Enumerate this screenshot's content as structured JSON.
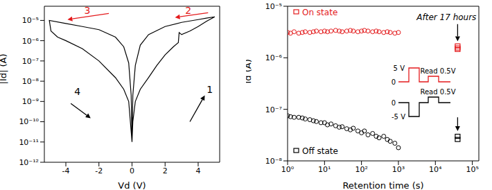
{
  "chart_data": [
    {
      "type": "line",
      "x_label": "Vd (V)",
      "y_label": "|Id| (A)",
      "log": "y",
      "xlim": [
        -5.3,
        5.3
      ],
      "xticks": [
        -4,
        -2,
        0,
        2,
        4
      ],
      "ylim": [
        1e-12,
        5e-05
      ],
      "yticks": [
        {
          "value": 1e-12,
          "label": "10⁻¹²"
        },
        {
          "value": 1e-11,
          "label": "10⁻¹¹"
        },
        {
          "value": 1e-10,
          "label": "10⁻¹⁰"
        },
        {
          "value": 1e-09,
          "label": "10⁻⁹"
        },
        {
          "value": 1e-08,
          "label": "10⁻⁸"
        },
        {
          "value": 1e-07,
          "label": "10⁻⁷"
        },
        {
          "value": 1e-06,
          "label": "10⁻⁶"
        },
        {
          "value": 1e-05,
          "label": "10⁻⁵"
        }
      ],
      "series": [
        {
          "color": "#000000",
          "line_style": "solid",
          "x": [
            0,
            0.05,
            0.2,
            0.5,
            1,
            1.5,
            2,
            2.5,
            2.8,
            2.85,
            3,
            3.5,
            4,
            4.5,
            5,
            4.5,
            4,
            3,
            2,
            1,
            0.5,
            0.2,
            0.05,
            0,
            -0.05,
            -0.2,
            -0.5,
            -1,
            -2,
            -3,
            -4,
            -5,
            -4.9,
            -4.5,
            -4,
            -3,
            -2,
            -1,
            -0.5,
            -0.2,
            0
          ],
          "values": [
            1e-11,
            1e-10,
            1e-09,
            4e-09,
            1.5e-08,
            6e-08,
            2e-07,
            5e-07,
            8e-07,
            2.5e-06,
            2e-06,
            3e-06,
            5e-06,
            9e-06,
            1.5e-05,
            1.3e-05,
            1.1e-05,
            8e-06,
            5e-06,
            2e-06,
            6e-07,
            6e-08,
            2e-09,
            1e-11,
            2e-09,
            8e-08,
            5e-07,
            1.5e-06,
            3.5e-06,
            5e-06,
            7e-06,
            1e-05,
            3e-06,
            1.5e-06,
            1e-06,
            4e-07,
            1e-07,
            1.5e-08,
            4e-09,
            1e-09,
            1e-11
          ]
        }
      ],
      "annotations": [
        {
          "text": "1",
          "color": "#000000",
          "x": 4.7,
          "y": 4e-09,
          "arrow_from": [
            3.5,
            1e-10
          ],
          "arrow_to": [
            4.4,
            2e-09
          ]
        },
        {
          "text": "2",
          "color": "#e41a1c",
          "x": 3.4,
          "y": 3.2e-05,
          "arrow_from": [
            4.6,
            2.4e-05
          ],
          "arrow_to": [
            2.6,
            1.4e-05
          ]
        },
        {
          "text": "3",
          "color": "#e41a1c",
          "x": -2.7,
          "y": 3.2e-05,
          "arrow_from": [
            -1.4,
            2.2e-05
          ],
          "arrow_to": [
            -3.9,
            1.1e-05
          ]
        },
        {
          "text": "4",
          "color": "#000000",
          "x": -3.3,
          "y": 3e-09,
          "arrow_from": [
            -3.7,
            8e-10
          ],
          "arrow_to": [
            -2.5,
            1.5e-10
          ]
        }
      ]
    },
    {
      "type": "scatter",
      "x_label": "Retention time (s)",
      "y_label": "Id (A)",
      "log": true,
      "legend": "left",
      "xlim": [
        1,
        150000
      ],
      "xticks": [
        {
          "value": 1,
          "label": "10⁰"
        },
        {
          "value": 10,
          "label": "10¹"
        },
        {
          "value": 100,
          "label": "10²"
        },
        {
          "value": 1000,
          "label": "10³"
        },
        {
          "value": 10000,
          "label": "10⁴"
        },
        {
          "value": 100000,
          "label": "10⁵"
        }
      ],
      "ylim": [
        1e-08,
        1e-05
      ],
      "yticks": [
        {
          "value": 1e-08,
          "label": "10⁻⁸"
        },
        {
          "value": 1e-07,
          "label": "10⁻⁷"
        },
        {
          "value": 1e-06,
          "label": "10⁻⁶"
        },
        {
          "value": 1e-05,
          "label": "10⁻⁵"
        }
      ],
      "series": [
        {
          "name": "On state",
          "color": "#e41a1c",
          "marker": "circle",
          "x": [
            1,
            1.2,
            1.5,
            2,
            2.5,
            3,
            4,
            5,
            6,
            8,
            10,
            12,
            15,
            20,
            25,
            30,
            40,
            50,
            60,
            80,
            100,
            120,
            150,
            200,
            250,
            300,
            400,
            500,
            600,
            800,
            1000
          ],
          "values": [
            3.1e-06,
            3e-06,
            3.2e-06,
            3e-06,
            3.1e-06,
            3.2e-06,
            3.1e-06,
            3.2e-06,
            3.3e-06,
            3.2e-06,
            3.3e-06,
            3.2e-06,
            3.3e-06,
            3.4e-06,
            3.3e-06,
            3.2e-06,
            3.3e-06,
            3.4e-06,
            3.3e-06,
            3.2e-06,
            3.3e-06,
            3.4e-06,
            3.3e-06,
            3.2e-06,
            3.3e-06,
            3.2e-06,
            3.1e-06,
            3.2e-06,
            3.1e-06,
            3e-06,
            3.1e-06
          ]
        },
        {
          "color": "#e41a1c",
          "marker": "square",
          "x": [
            40000,
            40000,
            40000
          ],
          "values": [
            1.7e-06,
            1.55e-06,
            1.45e-06
          ]
        },
        {
          "name": "Off state",
          "color": "#000000",
          "marker": "circle",
          "x": [
            1,
            1.2,
            1.5,
            2,
            2.5,
            3,
            4,
            5,
            6,
            8,
            10,
            12,
            15,
            20,
            25,
            30,
            40,
            50,
            60,
            80,
            100,
            120,
            150,
            200,
            250,
            300,
            400,
            500,
            600,
            800,
            1000
          ],
          "values": [
            7.5e-08,
            7.2e-08,
            7e-08,
            7e-08,
            6.8e-08,
            6.5e-08,
            6.3e-08,
            6e-08,
            5.8e-08,
            5.5e-08,
            5.5e-08,
            5e-08,
            5.2e-08,
            4.8e-08,
            4.5e-08,
            4.6e-08,
            4.2e-08,
            4e-08,
            4.3e-08,
            3.8e-08,
            3.5e-08,
            3.8e-08,
            3.2e-08,
            3.4e-08,
            3e-08,
            2.8e-08,
            3e-08,
            2.6e-08,
            2.4e-08,
            2.2e-08,
            1.8e-08
          ]
        },
        {
          "color": "#000000",
          "marker": "square",
          "x": [
            40000,
            40000
          ],
          "values": [
            3e-08,
            2.6e-08
          ]
        }
      ],
      "annotations": [
        {
          "text": "After 17 hours",
          "color": "#000000",
          "x": 20000,
          "y": 6e-06,
          "arrows": [
            {
              "from": [
                40000,
                4.5e-06
              ],
              "to": [
                40000,
                2.1e-06
              ]
            },
            {
              "from": [
                40000,
                7e-08
              ],
              "to": [
                40000,
                3.8e-08
              ]
            }
          ]
        }
      ],
      "inset": {
        "on": {
          "high": "5 V",
          "low": "0",
          "read": "Read 0.5V"
        },
        "off": {
          "high": "0",
          "low": "-5 V",
          "read": "Read 0.5V"
        }
      }
    }
  ]
}
